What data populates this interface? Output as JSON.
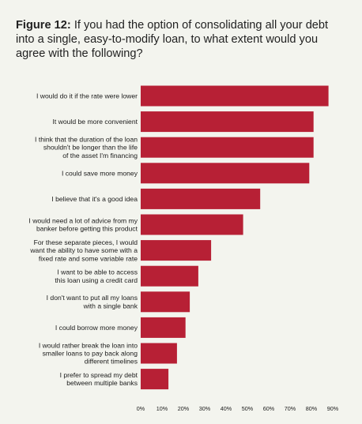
{
  "figure": {
    "label": "Figure 12:",
    "question": "If you had the option of consolidating all your debt into a single, easy-to-modify loan, to what extent would you agree with the following?"
  },
  "chart_data": {
    "type": "bar",
    "orientation": "horizontal",
    "title": "Figure 12: If you had the option of consolidating all your debt into a single, easy-to-modify loan, to what extent would you agree with the following?",
    "categories": [
      "I would do it if the rate were lower",
      "It would be more convenient",
      "I think that the duration of the loan shouldn't be longer than the life of the asset I'm financing",
      "I could save more money",
      "I believe that it's a good idea",
      "I would need a lot of advice from my banker before getting this product",
      "For these separate pieces, I would want the ability to have some with a fixed rate and some variable rate",
      "I want to be able to access this loan using a credit card",
      "I don't want to put all my loans with a single bank",
      "I could borrow more money",
      "I would rather break the loan into smaller loans to pay back along different timelines",
      "I prefer to spread my debt between multiple banks"
    ],
    "category_lines": [
      [
        "I would do it if the rate were lower"
      ],
      [
        "It would be more convenient"
      ],
      [
        "I think that the duration of the loan",
        "shouldn't be longer than the life",
        "of the asset I'm financing"
      ],
      [
        "I could save more money"
      ],
      [
        "I believe that it's a good idea"
      ],
      [
        "I would need a lot of advice from my",
        "banker before getting this product"
      ],
      [
        "For these separate pieces, I would",
        "want the ability to have some with a",
        "fixed rate and some variable rate"
      ],
      [
        "I want to be able to access",
        "this loan using a credit card"
      ],
      [
        "I don't want to put all my loans",
        "with a single bank"
      ],
      [
        "I could borrow more money"
      ],
      [
        "I would rather break the loan into",
        "smaller loans to pay back along",
        "different timelines"
      ],
      [
        "I prefer to spread my debt",
        "between multiple banks"
      ]
    ],
    "values": [
      88,
      81,
      81,
      79,
      56,
      48,
      33,
      27,
      23,
      21,
      17,
      13
    ],
    "xlim": [
      0,
      90
    ],
    "xticks": [
      "0%",
      "10%",
      "20%",
      "30%",
      "40%",
      "50%",
      "60%",
      "70%",
      "80%",
      "90%"
    ],
    "xlabel": "",
    "ylabel": "",
    "grid": false,
    "legend": "none",
    "bar_color": "#b72035"
  }
}
